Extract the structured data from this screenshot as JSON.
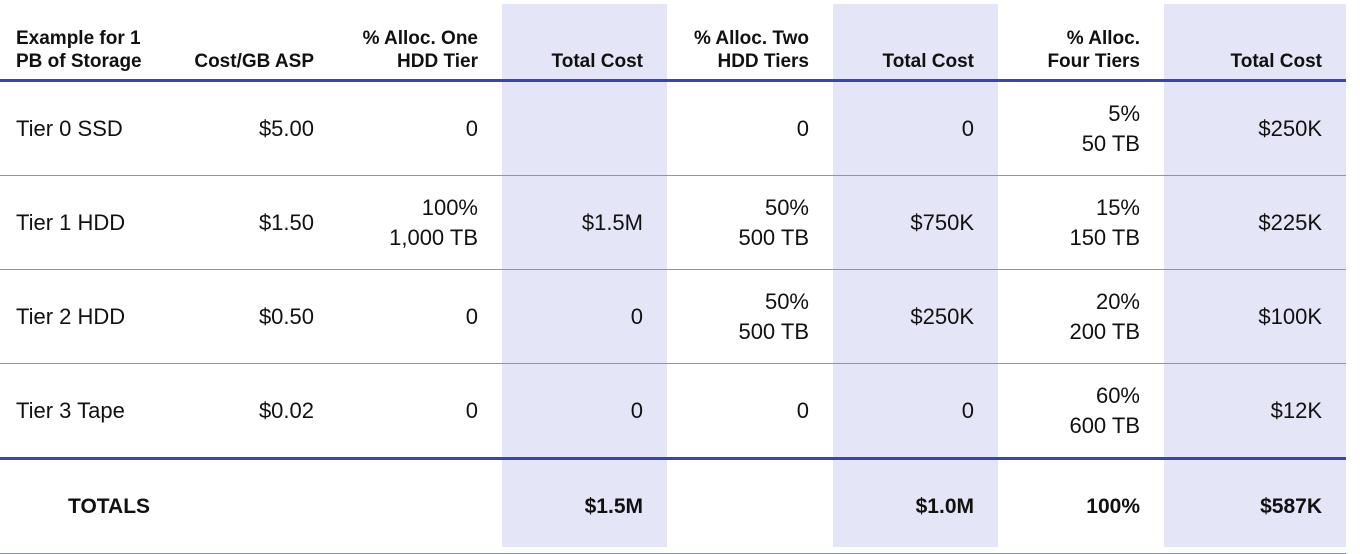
{
  "headers": [
    [
      "Example for 1",
      "PB of Storage"
    ],
    [
      "Cost/GB ASP"
    ],
    [
      "% Alloc. One",
      "HDD Tier"
    ],
    [
      "Total Cost"
    ],
    [
      "% Alloc. Two",
      "HDD Tiers"
    ],
    [
      "Total Cost"
    ],
    [
      "% Alloc.",
      "Four Tiers"
    ],
    [
      "Total Cost"
    ]
  ],
  "rows": [
    {
      "tier": "Tier 0 SSD",
      "cost_per_gb": "$5.00",
      "alloc_one": [
        "0"
      ],
      "total_one": [
        ""
      ],
      "alloc_two": [
        "0"
      ],
      "total_two": [
        "0"
      ],
      "alloc_four": [
        "5%",
        "50 TB"
      ],
      "total_four": [
        "$250K"
      ]
    },
    {
      "tier": "Tier 1 HDD",
      "cost_per_gb": "$1.50",
      "alloc_one": [
        "100%",
        "1,000 TB"
      ],
      "total_one": [
        "$1.5M"
      ],
      "alloc_two": [
        "50%",
        "500 TB"
      ],
      "total_two": [
        "$750K"
      ],
      "alloc_four": [
        "15%",
        "150 TB"
      ],
      "total_four": [
        "$225K"
      ]
    },
    {
      "tier": "Tier 2 HDD",
      "cost_per_gb": "$0.50",
      "alloc_one": [
        "0"
      ],
      "total_one": [
        "0"
      ],
      "alloc_two": [
        "50%",
        "500 TB"
      ],
      "total_two": [
        "$250K"
      ],
      "alloc_four": [
        "20%",
        "200 TB"
      ],
      "total_four": [
        "$100K"
      ]
    },
    {
      "tier": "Tier 3 Tape",
      "cost_per_gb": "$0.02",
      "alloc_one": [
        "0"
      ],
      "total_one": [
        "0"
      ],
      "alloc_two": [
        "0"
      ],
      "total_two": [
        "0"
      ],
      "alloc_four": [
        "60%",
        "600 TB"
      ],
      "total_four": [
        "$12K"
      ]
    }
  ],
  "totals": {
    "label": "TOTALS",
    "cost_per_gb": "",
    "alloc_one": "",
    "total_one": "$1.5M",
    "alloc_two": "",
    "total_two": "$1.0M",
    "alloc_four": "100%",
    "total_four": "$587K"
  },
  "colors": {
    "band": "#e4e5f6",
    "rule_strong": "#3d46a8",
    "rule_light": "#8a90c8"
  }
}
